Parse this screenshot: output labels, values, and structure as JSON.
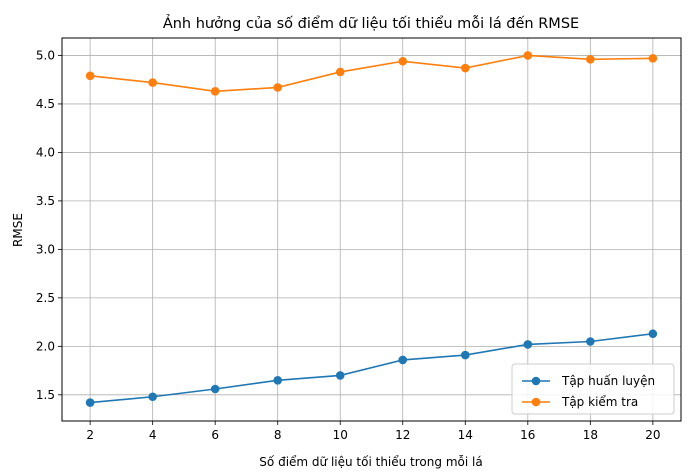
{
  "chart_data": {
    "type": "line",
    "title": "Ảnh hưởng của số điểm dữ liệu tối thiểu mỗi lá đến RMSE",
    "xlabel": "Số điểm dữ liệu tối thiểu trong mỗi lá",
    "ylabel": "RMSE",
    "x": [
      2,
      4,
      6,
      8,
      10,
      12,
      14,
      16,
      18,
      20
    ],
    "xticks": [
      "2",
      "4",
      "6",
      "8",
      "10",
      "12",
      "14",
      "16",
      "18",
      "20"
    ],
    "yticks": [
      "1.5",
      "2.0",
      "2.5",
      "3.0",
      "3.5",
      "4.0",
      "4.5",
      "5.0"
    ],
    "xlim": [
      1.1,
      20.9
    ],
    "ylim": [
      1.23,
      5.18
    ],
    "grid": true,
    "legend_position": "bottom-right",
    "series": [
      {
        "name": "Tập huấn luyện",
        "color": "#1f77b4",
        "values": [
          1.42,
          1.48,
          1.56,
          1.65,
          1.7,
          1.86,
          1.91,
          2.02,
          2.05,
          2.13
        ]
      },
      {
        "name": "Tập kiểm tra",
        "color": "#ff7f0e",
        "values": [
          4.79,
          4.72,
          4.63,
          4.67,
          4.83,
          4.94,
          4.87,
          5.0,
          4.96,
          4.97
        ]
      }
    ]
  }
}
